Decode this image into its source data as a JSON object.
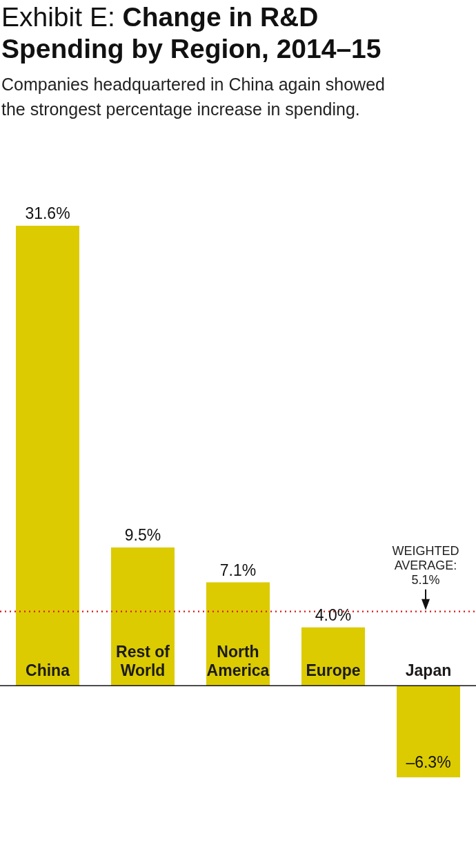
{
  "chart_data": {
    "type": "bar",
    "title": "Exhibit E: Change in R&D Spending by Region, 2014–15",
    "subtitle": "Companies headquartered in China again showed the strongest percentage increase in spending.",
    "categories": [
      "China",
      "Rest of World",
      "North America",
      "Europe",
      "Japan"
    ],
    "values": [
      31.6,
      9.5,
      7.1,
      4.0,
      -6.3
    ],
    "value_labels": [
      "31.6%",
      "9.5%",
      "7.1%",
      "4.0%",
      "–6.3%"
    ],
    "color": "#dccb00",
    "ref_lines": [
      {
        "axis": "y",
        "value": 5.1,
        "label": "WEIGHTED AVERAGE: 5.1%",
        "color": "#e0262a",
        "line_style": "dotted"
      }
    ],
    "grid": false,
    "legend": false
  }
}
